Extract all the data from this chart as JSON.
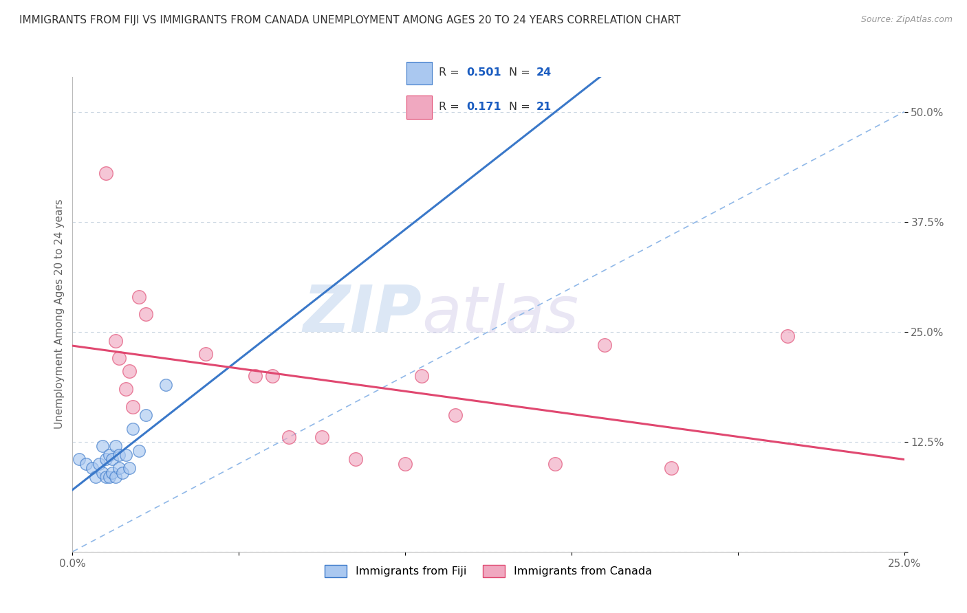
{
  "title": "IMMIGRANTS FROM FIJI VS IMMIGRANTS FROM CANADA UNEMPLOYMENT AMONG AGES 20 TO 24 YEARS CORRELATION CHART",
  "source": "Source: ZipAtlas.com",
  "ylabel": "Unemployment Among Ages 20 to 24 years",
  "xlim": [
    0.0,
    0.25
  ],
  "ylim": [
    0.0,
    0.54
  ],
  "yticks": [
    0.0,
    0.125,
    0.25,
    0.375,
    0.5
  ],
  "ytick_labels": [
    "",
    "12.5%",
    "25.0%",
    "37.5%",
    "50.0%"
  ],
  "fiji_R": 0.501,
  "fiji_N": 24,
  "canada_R": 0.171,
  "canada_N": 21,
  "fiji_color": "#aac8f0",
  "canada_color": "#f0a8c0",
  "fiji_line_color": "#3a78c9",
  "canada_line_color": "#e04870",
  "dash_color": "#90b8e8",
  "watermark_zip": "ZIP",
  "watermark_atlas": "atlas",
  "fiji_x": [
    0.002,
    0.004,
    0.006,
    0.007,
    0.008,
    0.009,
    0.009,
    0.01,
    0.01,
    0.011,
    0.011,
    0.012,
    0.012,
    0.013,
    0.013,
    0.014,
    0.014,
    0.015,
    0.016,
    0.017,
    0.018,
    0.02,
    0.022,
    0.028
  ],
  "fiji_y": [
    0.105,
    0.1,
    0.095,
    0.085,
    0.1,
    0.09,
    0.12,
    0.085,
    0.105,
    0.085,
    0.11,
    0.09,
    0.105,
    0.085,
    0.12,
    0.095,
    0.11,
    0.09,
    0.11,
    0.095,
    0.14,
    0.115,
    0.155,
    0.19
  ],
  "canada_x": [
    0.01,
    0.013,
    0.014,
    0.016,
    0.017,
    0.018,
    0.02,
    0.022,
    0.04,
    0.055,
    0.06,
    0.065,
    0.075,
    0.085,
    0.1,
    0.105,
    0.115,
    0.145,
    0.16,
    0.18,
    0.215
  ],
  "canada_y": [
    0.43,
    0.24,
    0.22,
    0.185,
    0.205,
    0.165,
    0.29,
    0.27,
    0.225,
    0.2,
    0.2,
    0.13,
    0.13,
    0.105,
    0.1,
    0.2,
    0.155,
    0.1,
    0.235,
    0.095,
    0.245
  ],
  "background_color": "#ffffff",
  "grid_color": "#c8d4e0",
  "title_fontsize": 11,
  "axis_label_fontsize": 11,
  "tick_fontsize": 11
}
